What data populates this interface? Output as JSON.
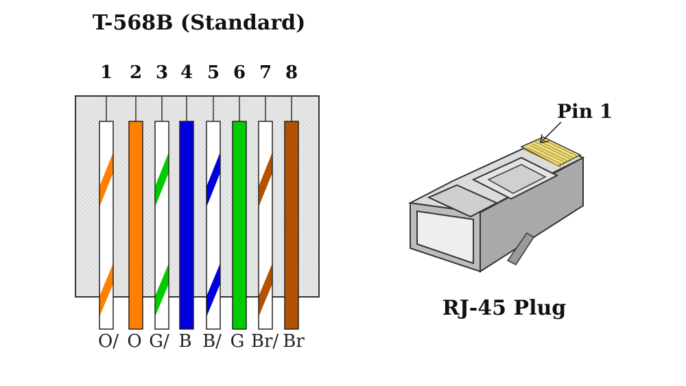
{
  "diagram": {
    "title": "T-568B (Standard)",
    "plug_label": "RJ-45 Plug",
    "pin1_label": "Pin 1"
  },
  "wires": [
    {
      "pin": "1",
      "label": "O/",
      "color": "#ff8000",
      "striped": true
    },
    {
      "pin": "2",
      "label": "O",
      "color": "#ff8000",
      "striped": false
    },
    {
      "pin": "3",
      "label": "G/",
      "color": "#00cc00",
      "striped": true
    },
    {
      "pin": "4",
      "label": "B",
      "color": "#0000dd",
      "striped": false
    },
    {
      "pin": "5",
      "label": "B/",
      "color": "#0000dd",
      "striped": true
    },
    {
      "pin": "6",
      "label": "G",
      "color": "#00cc00",
      "striped": false
    },
    {
      "pin": "7",
      "label": "Br/",
      "color": "#b35200",
      "striped": true
    },
    {
      "pin": "8",
      "label": "Br",
      "color": "#b35200",
      "striped": false
    }
  ],
  "colors": {
    "panel": "#e6e6e6",
    "plug_body": "#c8c8c8",
    "plug_contacts": "#e8d36a"
  }
}
